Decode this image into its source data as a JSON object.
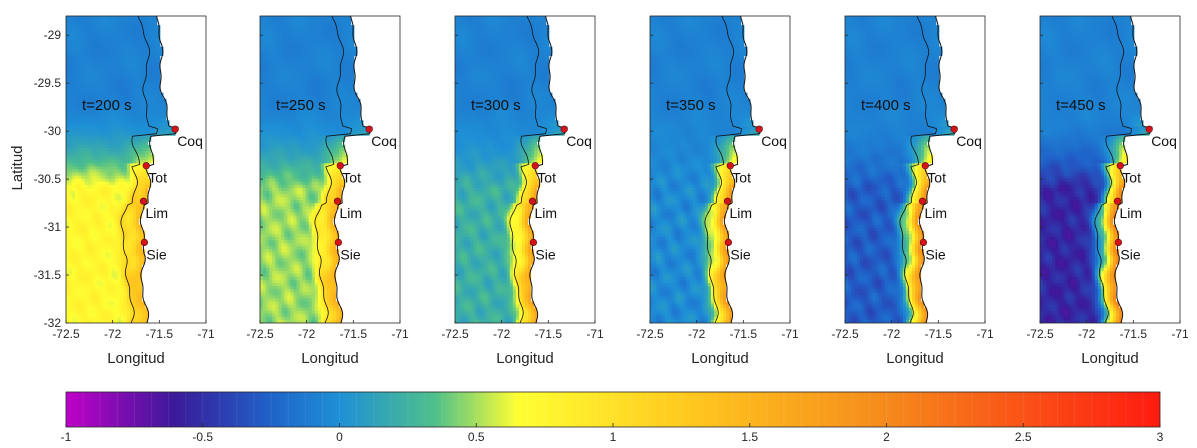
{
  "chart_data": {
    "type": "heatmap",
    "figure": "Small multiples: filled maps of a scalar field (coastal central Chile) at successive times, with a shared colorbar",
    "ylabel": "Latitud",
    "xlabel": "Longitud",
    "xlim": [
      -72.5,
      -71
    ],
    "ylim": [
      -32,
      -28.8
    ],
    "xticks": [
      -72.5,
      -72,
      -71.5,
      -71
    ],
    "xtick_labels": [
      "-72.5",
      "-72",
      "-71.5",
      "-71"
    ],
    "yticks": [
      -29,
      -29.5,
      -30,
      -30.5,
      -31,
      -31.5,
      -32
    ],
    "ytick_labels": [
      "-29",
      "-29.5",
      "-30",
      "-30.5",
      "-31",
      "-31.5",
      "-32"
    ],
    "panels": [
      {
        "label": "t=200 s",
        "time_s": 200
      },
      {
        "label": "t=250 s",
        "time_s": 250
      },
      {
        "label": "t=300 s",
        "time_s": 300
      },
      {
        "label": "t=350 s",
        "time_s": 350
      },
      {
        "label": "t=400 s",
        "time_s": 400
      },
      {
        "label": "t=450 s",
        "time_s": 450
      }
    ],
    "stations": [
      {
        "name": "Coq",
        "lon": -71.33,
        "lat": -29.98
      },
      {
        "name": "Tot",
        "lon": -71.64,
        "lat": -30.36
      },
      {
        "name": "Lim",
        "lon": -71.67,
        "lat": -30.73
      },
      {
        "name": "Sie",
        "lon": -71.66,
        "lat": -31.16
      }
    ],
    "colorbar": {
      "min": -1,
      "max": 3,
      "ticks": [
        -1,
        -0.5,
        0,
        0.5,
        1,
        1.5,
        2,
        2.5,
        3
      ],
      "tick_labels": [
        "-1",
        "-0.5",
        "0",
        "0.5",
        "1",
        "1.5",
        "2",
        "2.5",
        "3"
      ],
      "colors": [
        "#c000c8",
        "#3a1a9a",
        "#1f63c9",
        "#1e90d6",
        "#4fc08a",
        "#ffff33",
        "#ffc61e",
        "#f58a1c",
        "#ff1a10"
      ],
      "stops": [
        -1,
        -0.6,
        -0.25,
        0,
        0.35,
        0.65,
        1.3,
        2.0,
        3.0
      ]
    },
    "colors": {
      "land": "#ffffff",
      "contour": "#111111",
      "station_marker": "#d4141a",
      "background_ocean": "#1e8fd6"
    }
  }
}
